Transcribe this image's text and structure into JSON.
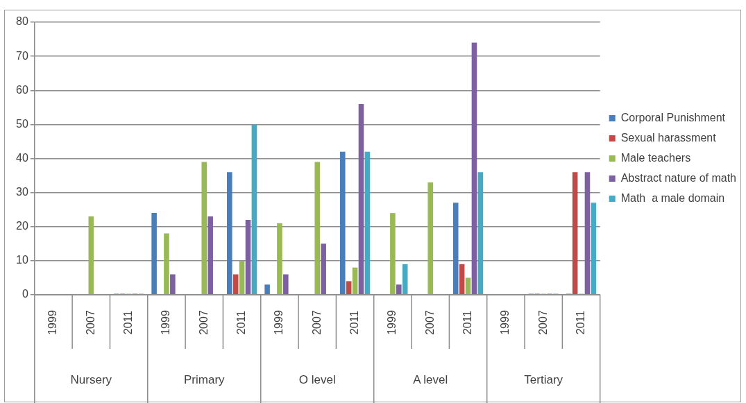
{
  "chart_data": {
    "type": "bar",
    "categories": [
      "1999",
      "2007",
      "2011",
      "1999",
      "2007",
      "2011",
      "1999",
      "2007",
      "2011",
      "1999",
      "2007",
      "2011",
      "1999",
      "2007",
      "2011"
    ],
    "annotations": [
      "Nursery",
      "Primary",
      "O level",
      "A level",
      "Tertiary"
    ],
    "series": [
      {
        "name": "Corporal Punishment",
        "color": "#4a7ebb",
        "values": [
          null,
          null,
          0,
          24,
          null,
          36,
          3,
          null,
          42,
          null,
          null,
          27,
          null,
          0,
          0
        ]
      },
      {
        "name": "Sexual harassment",
        "color": "#be4b48",
        "values": [
          null,
          null,
          0,
          null,
          null,
          6,
          null,
          null,
          4,
          null,
          null,
          9,
          null,
          0,
          36
        ]
      },
      {
        "name": "Male teachers",
        "color": "#98b954",
        "values": [
          null,
          23,
          0,
          18,
          39,
          10,
          21,
          39,
          8,
          24,
          33,
          5,
          null,
          0,
          0
        ]
      },
      {
        "name": "Abstract nature of math",
        "color": "#7d60a0",
        "values": [
          null,
          null,
          0,
          6,
          23,
          22,
          6,
          15,
          56,
          3,
          null,
          74,
          null,
          0,
          36
        ]
      },
      {
        "name": "Math  a male domain",
        "color": "#46aac5",
        "values": [
          null,
          null,
          0,
          null,
          null,
          50,
          null,
          null,
          42,
          9,
          null,
          36,
          null,
          0,
          27
        ]
      }
    ],
    "ylim": [
      0,
      80
    ],
    "yticks": [
      0,
      10,
      20,
      30,
      40,
      50,
      60,
      70,
      80
    ],
    "grid": "y",
    "legend": "right"
  }
}
